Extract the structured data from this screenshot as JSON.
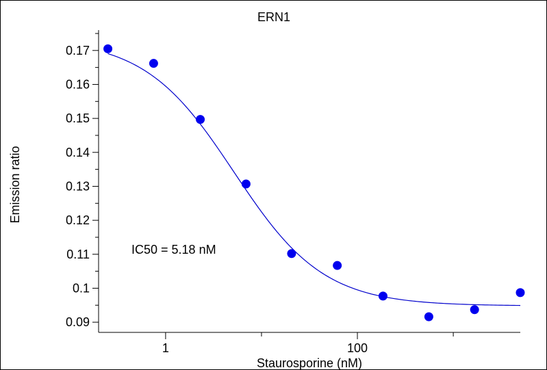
{
  "chart_data": {
    "type": "scatter",
    "title": "ERN1",
    "xlabel": "Staurosporine (nM)",
    "ylabel": "Emission ratio",
    "x_scale": "log",
    "xlim": [
      0.2,
      5000
    ],
    "ylim": [
      0.087,
      0.176
    ],
    "x_ticks": [
      1,
      100
    ],
    "x_tick_labels": [
      "1",
      "100"
    ],
    "y_ticks": [
      0.09,
      0.1,
      0.11,
      0.12,
      0.13,
      0.14,
      0.15,
      0.16,
      0.17
    ],
    "y_tick_labels": [
      "0.09",
      "0.1",
      "0.11",
      "0.12",
      "0.13",
      "0.14",
      "0.15",
      "0.16",
      "0.17"
    ],
    "annotation": "IC50 = 5.18 nM",
    "grid": false,
    "marker_color": "#0000ee",
    "curve_color": "#0000cc",
    "series": [
      {
        "x": [
          0.25,
          0.75,
          2.3,
          6.9,
          20.6,
          61.7,
          185,
          556,
          1667,
          5000
        ],
        "y": [
          0.1705,
          0.1662,
          0.1497,
          0.1307,
          0.1102,
          0.1067,
          0.0977,
          0.0916,
          0.0937,
          0.0987
        ]
      }
    ],
    "fit": {
      "model": "4PL",
      "top": 0.1735,
      "bottom": 0.0948,
      "ic50": 5.18,
      "hill": 0.93
    }
  }
}
